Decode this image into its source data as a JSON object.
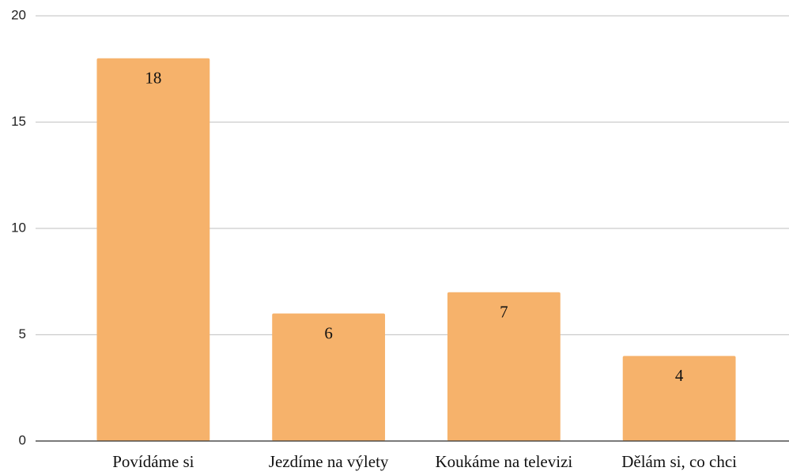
{
  "chart_data": {
    "type": "bar",
    "categories": [
      "Povídáme si",
      "Jezdíme na výlety",
      "Koukáme na televizi",
      "Dělám si, co chci"
    ],
    "values": [
      18,
      6,
      7,
      4
    ],
    "color": "#f6b26b",
    "ylim": [
      0,
      20
    ],
    "yticks": [
      0,
      5,
      10,
      15,
      20
    ],
    "grid": true,
    "data_labels": true
  }
}
